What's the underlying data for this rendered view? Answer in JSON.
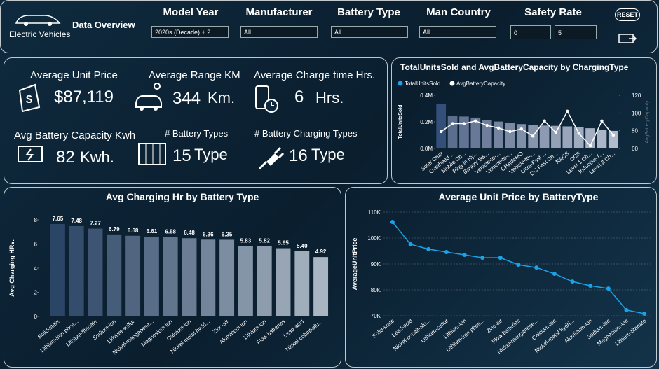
{
  "header": {
    "logo": "Electric Vehicles",
    "title": "Data Overview",
    "reset": "RESET"
  },
  "filters": [
    {
      "label": "Model Year",
      "value": "2020s (Decade) + 2..."
    },
    {
      "label": "Manufacturer",
      "value": "All"
    },
    {
      "label": "Battery Type",
      "value": "All"
    },
    {
      "label": "Man Country",
      "value": "All"
    },
    {
      "label": "Safety Rate",
      "values": [
        0,
        5
      ]
    }
  ],
  "kpis": [
    {
      "label": "Average Unit Price",
      "value": "$87,119"
    },
    {
      "label": "Average Range KM",
      "value": 344,
      "unit": "Km."
    },
    {
      "label": "Average Charge time Hrs.",
      "value": 6,
      "unit": "Hrs."
    },
    {
      "label": "Avg Battery Capacity Kwh",
      "value": 82,
      "unit": "Kwh."
    },
    {
      "label": "# Battery Types",
      "value": 15,
      "unit": "Type"
    },
    {
      "label": "# Battery Charging Types",
      "value": 16,
      "unit": "Type"
    }
  ],
  "chart_data": [
    {
      "type": "combo",
      "title": "TotalUnitsSold and AvgBatteryCapacity by ChargingType",
      "y_label": "TotalUnitsSold",
      "y2_label": "AvgBatteryCapacity",
      "categories": [
        "Solar Char",
        "Overhead ...",
        "Mobile Ch...",
        "Plug-in Hy...",
        "Battery Sw...",
        "Vehicle-to-...",
        "Vehicle-to-...",
        "CHAdeMO",
        "Vehicle-to-...",
        "Ultra-Fast ...",
        "DC Fast Ch...",
        "NACS",
        "CCS",
        "Level 1 Ch...",
        "Inductive (...",
        "Level 2 Ch..."
      ],
      "series": [
        {
          "name": "TotalUnitsSold",
          "color": "#1aa3e8",
          "values": [
            337000,
            242000,
            240000,
            232000,
            212000,
            202000,
            193000,
            183000,
            176000,
            172000,
            170000,
            166000,
            162000,
            152000,
            142000,
            132000
          ]
        },
        {
          "name": "AvgBatteryCapacity",
          "color": "#ffffff",
          "axis": "y2",
          "values": [
            79,
            88,
            88,
            91,
            86,
            83,
            79,
            82,
            74,
            91,
            78,
            102,
            77,
            63,
            91,
            75
          ]
        }
      ],
      "ylim": [
        0,
        400000
      ],
      "yticks": [
        {
          "value": 0,
          "label": "0.0M"
        },
        {
          "value": 200000,
          "label": "0.2M"
        },
        {
          "value": 400000,
          "label": "0.4M"
        }
      ],
      "y2lim": [
        60,
        120
      ],
      "y2ticks": [
        60,
        80,
        100,
        120
      ]
    },
    {
      "type": "bar",
      "title": "Avg Charging Hr by Battery Type",
      "y_label": "Avg Charging HRs.",
      "categories": [
        "Solid-state",
        "Lithium-iron phos...",
        "Lithium-titanate",
        "Sodium-ion",
        "Lithium-sulfur",
        "Nickel-manganese...",
        "Magnesium-ion",
        "Calcium-ion",
        "Nickel-metal hydri...",
        "Zinc-air",
        "Aluminum-ion",
        "Lithium-ion",
        "Flow batteries",
        "Lead-acid",
        "Nickel-cobalt-alu..."
      ],
      "values": [
        7.65,
        7.48,
        7.27,
        6.79,
        6.68,
        6.61,
        6.58,
        6.48,
        6.36,
        6.35,
        5.83,
        5.82,
        5.65,
        5.4,
        4.92
      ],
      "value_labels": [
        "7.65",
        "7.48",
        "7.27",
        "6.79",
        "6.68",
        "6.61",
        "6.58",
        "6.48",
        "6.36",
        "6.35",
        "5.83",
        "5.82",
        "5.65",
        "5.40",
        "4.92"
      ],
      "ylim": [
        0,
        8
      ],
      "yticks": [
        0,
        2,
        4,
        6,
        8
      ]
    },
    {
      "type": "line",
      "title": "Average Unit Price by BatteryType",
      "y_label": "AverageUnitPrice",
      "color": "#1aa3e8",
      "grid": true,
      "categories": [
        "Solid-state",
        "Lead-acid",
        "Nickel-cobalt-alu...",
        "Lithium-sulfur",
        "Lithium-ion",
        "Lithium-iron phos...",
        "Zinc-air",
        "Flow batteries",
        "Nickel-manganese...",
        "Calcium-ion",
        "Nickel-metal hydri...",
        "Aluminum-ion",
        "Sodium-ion",
        "Magnesium-ion",
        "Lithium-titanate"
      ],
      "values": [
        106200,
        97600,
        95700,
        94600,
        93500,
        92400,
        92400,
        89700,
        88600,
        86200,
        83200,
        81600,
        80500,
        72200,
        70800
      ],
      "ylim": [
        70000,
        110000
      ],
      "yticks": [
        {
          "value": 70000,
          "label": "70K"
        },
        {
          "value": 80000,
          "label": "80K"
        },
        {
          "value": 90000,
          "label": "90K"
        },
        {
          "value": 100000,
          "label": "100K"
        },
        {
          "value": 110000,
          "label": "110K"
        }
      ]
    }
  ]
}
